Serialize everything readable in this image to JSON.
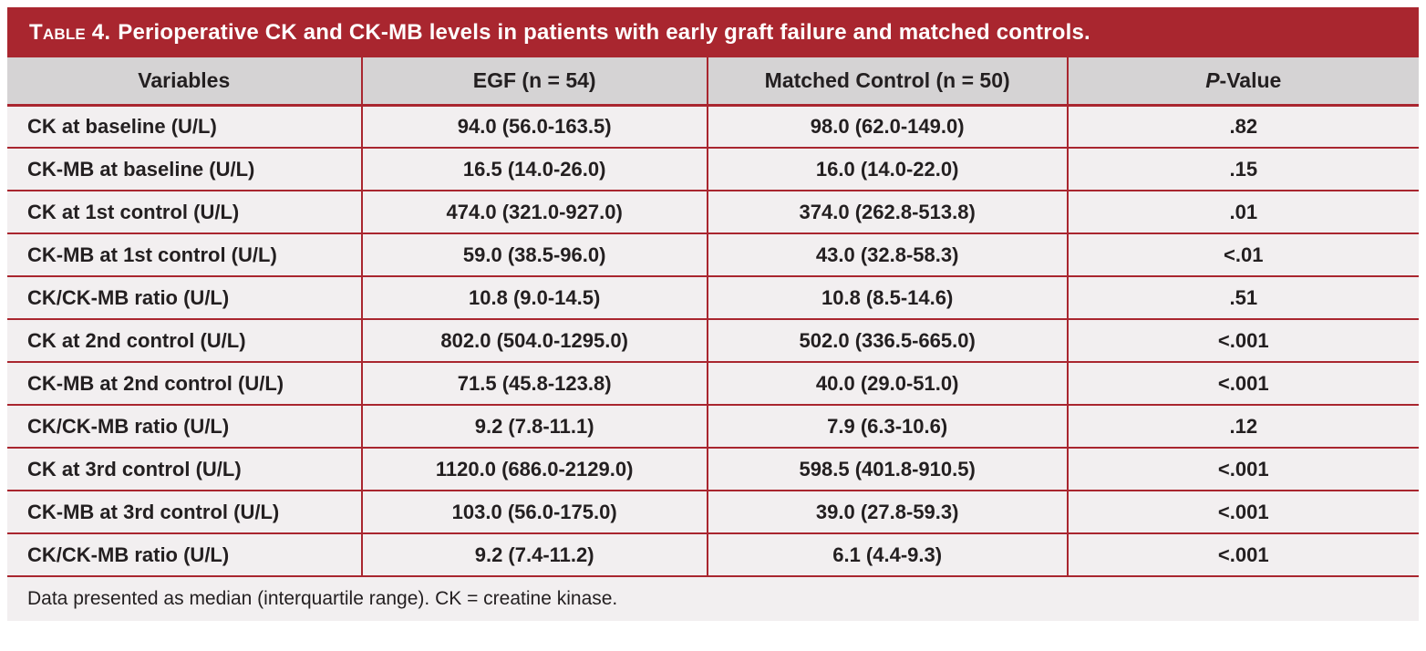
{
  "title": {
    "table_label": "Table 4.",
    "text": "Perioperative CK and CK-MB levels in patients with early graft failure and matched controls."
  },
  "table": {
    "columns": [
      "Variables",
      "EGF (n = 54)",
      "Matched Control (n = 50)",
      "P-Value"
    ],
    "rows": [
      [
        "CK at baseline (U/L)",
        "94.0 (56.0-163.5)",
        "98.0 (62.0-149.0)",
        ".82"
      ],
      [
        "CK-MB at baseline (U/L)",
        "16.5 (14.0-26.0)",
        "16.0 (14.0-22.0)",
        ".15"
      ],
      [
        "CK at 1st control (U/L)",
        "474.0 (321.0-927.0)",
        "374.0 (262.8-513.8)",
        ".01"
      ],
      [
        "CK-MB at 1st control (U/L)",
        "59.0 (38.5-96.0)",
        "43.0 (32.8-58.3)",
        "<.01"
      ],
      [
        "CK/CK-MB ratio (U/L)",
        "10.8 (9.0-14.5)",
        "10.8 (8.5-14.6)",
        ".51"
      ],
      [
        "CK at 2nd control (U/L)",
        "802.0 (504.0-1295.0)",
        "502.0 (336.5-665.0)",
        "<.001"
      ],
      [
        "CK-MB at 2nd control (U/L)",
        "71.5 (45.8-123.8)",
        "40.0 (29.0-51.0)",
        "<.001"
      ],
      [
        "CK/CK-MB ratio (U/L)",
        "9.2 (7.8-11.1)",
        "7.9 (6.3-10.6)",
        ".12"
      ],
      [
        "CK at 3rd control (U/L)",
        "1120.0 (686.0-2129.0)",
        "598.5 (401.8-910.5)",
        "<.001"
      ],
      [
        "CK-MB at 3rd control (U/L)",
        "103.0 (56.0-175.0)",
        "39.0 (27.8-59.3)",
        "<.001"
      ],
      [
        "CK/CK-MB ratio (U/L)",
        "9.2 (7.4-11.2)",
        "6.1 (4.4-9.3)",
        "<.001"
      ]
    ],
    "footnote": "Data presented as median (interquartile range). CK = creatine kinase."
  },
  "colors": {
    "accent_red": "#A9262F",
    "column_header_gray": "#D5D3D4",
    "row_background": "#F2EFF0",
    "text": "#231F20",
    "title_text": "#FFFFFF"
  }
}
